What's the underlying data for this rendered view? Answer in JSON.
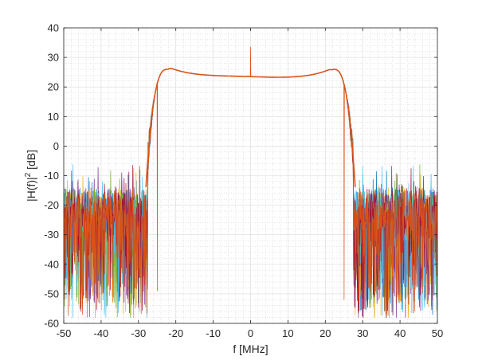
{
  "chart_data": {
    "type": "line",
    "title": "",
    "xlabel": "f [MHz]",
    "ylabel_main": "|H(f)|",
    "ylabel_sup": "2",
    "ylabel_unit": " [dB]",
    "xlim": [
      -50,
      50
    ],
    "ylim": [
      -60,
      40
    ],
    "xticks": [
      -50,
      -40,
      -30,
      -20,
      -10,
      0,
      10,
      20,
      30,
      40,
      50
    ],
    "yticks": [
      -60,
      -50,
      -40,
      -30,
      -20,
      -10,
      0,
      10,
      20,
      30,
      40
    ],
    "xtick_labels": [
      "-50",
      "-40",
      "-30",
      "-20",
      "-10",
      "0",
      "10",
      "20",
      "30",
      "40",
      "50"
    ],
    "ytick_labels": [
      "-60",
      "-50",
      "-40",
      "-30",
      "-20",
      "-10",
      "0",
      "10",
      "20",
      "30",
      "40"
    ],
    "grid": "minor-dotted",
    "legend": "none",
    "description_free": true,
    "passband": {
      "from": -28,
      "to": 28,
      "edge_level_db": 26,
      "center_level_db": 23.5,
      "spike_x": 0,
      "spike_db": 33.5
    },
    "stopband": {
      "median_db": -20,
      "upper_db": -8,
      "lower_db": -58
    },
    "notches": [
      {
        "x": -25,
        "db": -49
      },
      {
        "x": 25,
        "db": -52
      }
    ],
    "series_colors": [
      "#0072BD",
      "#D95319",
      "#EDB120",
      "#7E2F8E",
      "#77AC30",
      "#4DBEEE",
      "#A2142F"
    ],
    "top_series_color": "#D95319",
    "series": [
      {
        "color": "#0072BD"
      },
      {
        "color": "#EDB120"
      },
      {
        "color": "#7E2F8E"
      },
      {
        "color": "#77AC30"
      },
      {
        "color": "#4DBEEE"
      },
      {
        "color": "#A2142F"
      },
      {
        "color": "#D95319"
      }
    ]
  }
}
